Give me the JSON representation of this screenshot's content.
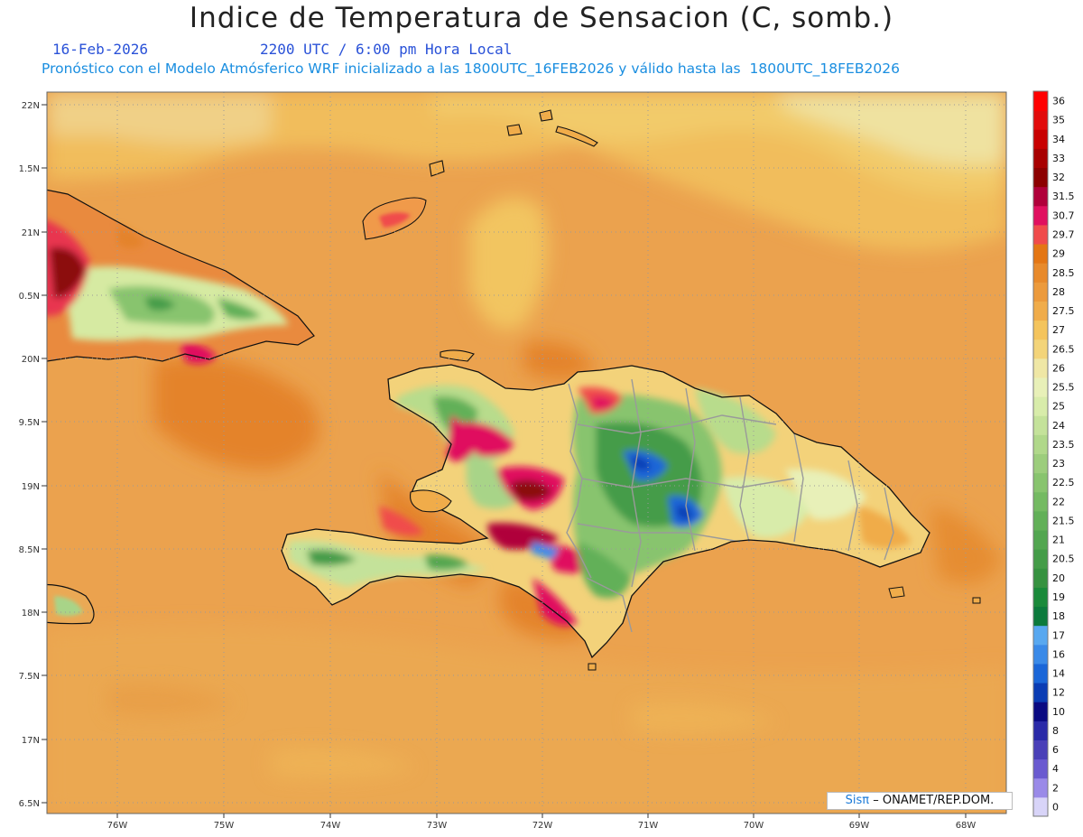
{
  "header": {
    "title": "Indice de Temperatura de Sensacion (C, somb.)",
    "date": "16-Feb-2026",
    "time": "2200 UTC / 6:00 pm Hora Local",
    "model_info": "Pronóstico con el Modelo Atmósferico WRF inicializado a las 1800UTC_16FEB2026 y válido hasta las  1800UTC_18FEB2026"
  },
  "map": {
    "lon_ticks": [
      "76W",
      "75W",
      "74W",
      "73W",
      "72W",
      "71W",
      "70W",
      "69W",
      "68W"
    ],
    "lat_ticks": [
      "22N",
      "1.5N",
      "21N",
      "0.5N",
      "20N",
      "9.5N",
      "19N",
      "8.5N",
      "18N",
      "7.5N",
      "17N",
      "6.5N"
    ]
  },
  "colorbar": {
    "labels": [
      "36",
      "35",
      "34",
      "33",
      "32",
      "31.5",
      "30.7",
      "29.7",
      "29",
      "28.5",
      "28",
      "27.5",
      "27",
      "26.5",
      "26",
      "25.5",
      "25",
      "24",
      "23.5",
      "23",
      "22.5",
      "22",
      "21.5",
      "21",
      "20.5",
      "20",
      "19",
      "18",
      "17",
      "16",
      "14",
      "12",
      "10",
      "8",
      "6",
      "4",
      "2",
      "0"
    ],
    "colors": [
      "#ff0000",
      "#e20b0b",
      "#c80000",
      "#a80000",
      "#8c0000",
      "#b0003a",
      "#e0105f",
      "#f04b4b",
      "#e47614",
      "#e88a2b",
      "#ec9a3c",
      "#f0ac4a",
      "#f4c45c",
      "#f3d479",
      "#efe7a5",
      "#e8f0b8",
      "#d8ecaa",
      "#c4e29a",
      "#b0d88a",
      "#9ccd7c",
      "#88c46e",
      "#74ba62",
      "#62b058",
      "#52a650",
      "#449c48",
      "#369240",
      "#1a8a3a",
      "#0c7a3c",
      "#58a8f0",
      "#3a8ae8",
      "#1a66d8",
      "#0a3cb4",
      "#0a0a82",
      "#2a2aa8",
      "#4a40b8",
      "#6a5ad0",
      "#9a8ae8",
      "#d8d4f8"
    ]
  },
  "credit": {
    "brand": "Sisπ",
    "text": "– ONAMET/REP.DOM."
  }
}
